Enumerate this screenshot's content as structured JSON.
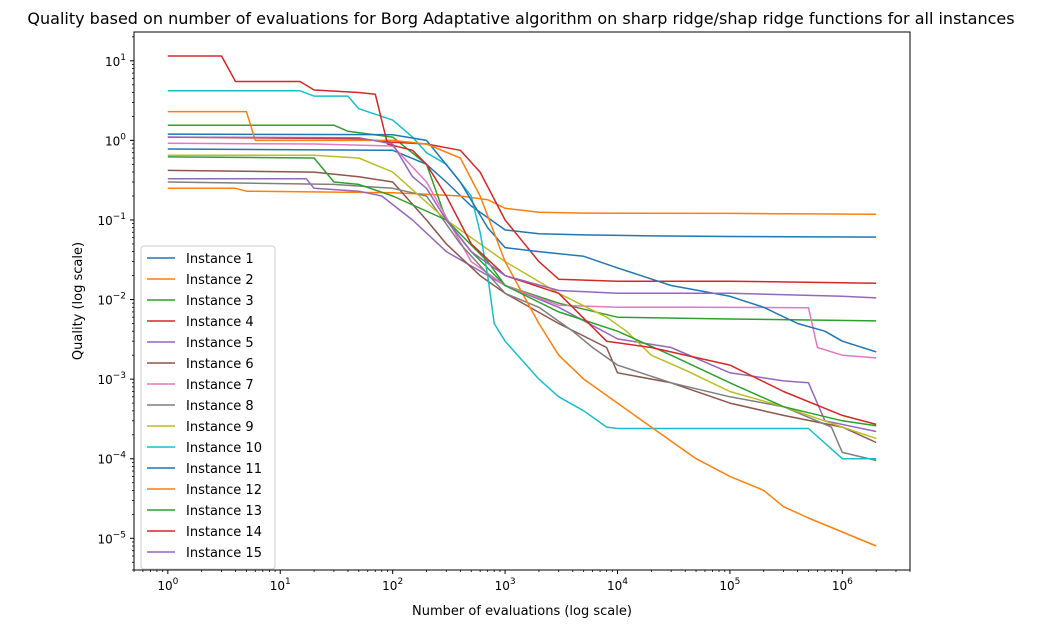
{
  "chart_data": {
    "type": "line",
    "title": "Quality based on number of evaluations for Borg Adaptative algorithm on sharp ridge/shap ridge functions for all instances",
    "xlabel": "Number of evaluations (log scale)",
    "ylabel": "Quality (log scale)",
    "x_scale": "log",
    "y_scale": "log",
    "xlim": [
      0.5,
      4000000
    ],
    "ylim": [
      4e-06,
      23
    ],
    "x_ticks": [
      {
        "value": 1,
        "base": "10",
        "exp": "0"
      },
      {
        "value": 10,
        "base": "10",
        "exp": "1"
      },
      {
        "value": 100,
        "base": "10",
        "exp": "2"
      },
      {
        "value": 1000,
        "base": "10",
        "exp": "3"
      },
      {
        "value": 10000,
        "base": "10",
        "exp": "4"
      },
      {
        "value": 100000,
        "base": "10",
        "exp": "5"
      },
      {
        "value": 1000000,
        "base": "10",
        "exp": "6"
      }
    ],
    "y_ticks": [
      {
        "value": 1e-05,
        "base": "10",
        "exp": "−5"
      },
      {
        "value": 0.0001,
        "base": "10",
        "exp": "−4"
      },
      {
        "value": 0.001,
        "base": "10",
        "exp": "−3"
      },
      {
        "value": 0.01,
        "base": "10",
        "exp": "−2"
      },
      {
        "value": 0.1,
        "base": "10",
        "exp": "−1"
      },
      {
        "value": 1,
        "base": "10",
        "exp": "0"
      },
      {
        "value": 10,
        "base": "10",
        "exp": "1"
      }
    ],
    "grid": false,
    "legend_position": "lower-left",
    "series": [
      {
        "name": "Instance 1",
        "color": "#1f77b4",
        "points": [
          [
            1,
            0.78
          ],
          [
            100,
            0.75
          ],
          [
            200,
            0.5
          ],
          [
            300,
            0.3
          ],
          [
            500,
            0.15
          ],
          [
            1000,
            0.075
          ],
          [
            2000,
            0.067
          ],
          [
            5000,
            0.065
          ],
          [
            20000,
            0.063
          ],
          [
            100000,
            0.062
          ],
          [
            2000000,
            0.061
          ]
        ]
      },
      {
        "name": "Instance 2",
        "color": "#ff7f0e",
        "points": [
          [
            1,
            0.25
          ],
          [
            4,
            0.25
          ],
          [
            5,
            0.23
          ],
          [
            100,
            0.22
          ],
          [
            200,
            0.21
          ],
          [
            400,
            0.2
          ],
          [
            700,
            0.18
          ],
          [
            1000,
            0.14
          ],
          [
            2000,
            0.125
          ],
          [
            5000,
            0.122
          ],
          [
            100000,
            0.121
          ],
          [
            2000000,
            0.118
          ]
        ]
      },
      {
        "name": "Instance 3",
        "color": "#2ca02c",
        "points": [
          [
            1,
            1.55
          ],
          [
            30,
            1.55
          ],
          [
            40,
            1.3
          ],
          [
            100,
            1.1
          ],
          [
            200,
            0.5
          ],
          [
            300,
            0.1
          ],
          [
            500,
            0.04
          ],
          [
            1000,
            0.015
          ],
          [
            3000,
            0.009
          ],
          [
            10000,
            0.006
          ],
          [
            100000,
            0.0057
          ],
          [
            2000000,
            0.0054
          ]
        ]
      },
      {
        "name": "Instance 4",
        "color": "#d62728",
        "points": [
          [
            1,
            1.1
          ],
          [
            50,
            1.05
          ],
          [
            100,
            0.95
          ],
          [
            200,
            0.9
          ],
          [
            400,
            0.75
          ],
          [
            600,
            0.4
          ],
          [
            1000,
            0.1
          ],
          [
            2000,
            0.03
          ],
          [
            3000,
            0.018
          ],
          [
            10000,
            0.017
          ],
          [
            100000,
            0.017
          ],
          [
            2000000,
            0.016
          ]
        ]
      },
      {
        "name": "Instance 5",
        "color": "#9467bd",
        "points": [
          [
            1,
            0.33
          ],
          [
            17,
            0.33
          ],
          [
            20,
            0.25
          ],
          [
            50,
            0.23
          ],
          [
            80,
            0.2
          ],
          [
            150,
            0.1
          ],
          [
            300,
            0.04
          ],
          [
            1000,
            0.015
          ],
          [
            3000,
            0.008
          ],
          [
            10000,
            0.0032
          ],
          [
            30000,
            0.0025
          ],
          [
            100000,
            0.0012
          ],
          [
            300000,
            0.00095
          ],
          [
            500000,
            0.0009
          ],
          [
            700000,
            0.0003
          ],
          [
            2000000,
            0.00022
          ]
        ]
      },
      {
        "name": "Instance 6",
        "color": "#8c564b",
        "points": [
          [
            1,
            0.42
          ],
          [
            20,
            0.4
          ],
          [
            50,
            0.35
          ],
          [
            100,
            0.3
          ],
          [
            200,
            0.1
          ],
          [
            300,
            0.05
          ],
          [
            600,
            0.02
          ],
          [
            1000,
            0.012
          ],
          [
            3000,
            0.005
          ],
          [
            8000,
            0.0025
          ],
          [
            10000,
            0.0012
          ],
          [
            30000,
            0.0009
          ],
          [
            100000,
            0.0005
          ],
          [
            300000,
            0.00035
          ],
          [
            1000000,
            0.00025
          ],
          [
            2000000,
            0.00016
          ]
        ]
      },
      {
        "name": "Instance 7",
        "color": "#e377c2",
        "points": [
          [
            1,
            0.92
          ],
          [
            20,
            0.9
          ],
          [
            100,
            0.85
          ],
          [
            200,
            0.3
          ],
          [
            500,
            0.03
          ],
          [
            1000,
            0.015
          ],
          [
            3000,
            0.0085
          ],
          [
            10000,
            0.008
          ],
          [
            50000,
            0.008
          ],
          [
            500000,
            0.0079
          ],
          [
            600000,
            0.0025
          ],
          [
            1000000,
            0.002
          ],
          [
            2000000,
            0.00185
          ]
        ]
      },
      {
        "name": "Instance 8",
        "color": "#7f7f7f",
        "points": [
          [
            1,
            0.3
          ],
          [
            30,
            0.28
          ],
          [
            100,
            0.25
          ],
          [
            200,
            0.2
          ],
          [
            400,
            0.05
          ],
          [
            1000,
            0.012
          ],
          [
            2000,
            0.008
          ],
          [
            4000,
            0.004
          ],
          [
            6000,
            0.0025
          ],
          [
            10000,
            0.0015
          ],
          [
            30000,
            0.0009
          ],
          [
            100000,
            0.0006
          ],
          [
            300000,
            0.00045
          ],
          [
            800000,
            0.00025
          ],
          [
            1000000,
            0.00012
          ],
          [
            2000000,
            9.5e-05
          ]
        ]
      },
      {
        "name": "Instance 9",
        "color": "#bcbd22",
        "points": [
          [
            1,
            0.65
          ],
          [
            20,
            0.65
          ],
          [
            50,
            0.6
          ],
          [
            100,
            0.4
          ],
          [
            300,
            0.1
          ],
          [
            600,
            0.05
          ],
          [
            1000,
            0.03
          ],
          [
            3000,
            0.012
          ],
          [
            8000,
            0.006
          ],
          [
            12000,
            0.004
          ],
          [
            20000,
            0.002
          ],
          [
            40000,
            0.0013
          ],
          [
            100000,
            0.0007
          ],
          [
            300000,
            0.00045
          ],
          [
            1000000,
            0.00025
          ],
          [
            2000000,
            0.00018
          ]
        ]
      },
      {
        "name": "Instance 10",
        "color": "#17becf",
        "points": [
          [
            1,
            4.2
          ],
          [
            15,
            4.2
          ],
          [
            20,
            3.6
          ],
          [
            40,
            3.6
          ],
          [
            50,
            2.5
          ],
          [
            100,
            1.8
          ],
          [
            150,
            1.1
          ],
          [
            200,
            0.7
          ],
          [
            300,
            0.5
          ],
          [
            500,
            0.2
          ],
          [
            600,
            0.07
          ],
          [
            700,
            0.02
          ],
          [
            800,
            0.005
          ],
          [
            1000,
            0.003
          ],
          [
            2000,
            0.001
          ],
          [
            3000,
            0.0006
          ],
          [
            5000,
            0.0004
          ],
          [
            8000,
            0.00025
          ],
          [
            10000,
            0.00024
          ],
          [
            100000,
            0.00024
          ],
          [
            500000,
            0.00024
          ],
          [
            1000000,
            0.0001
          ],
          [
            2000000,
            0.0001
          ]
        ]
      },
      {
        "name": "Instance 11",
        "color": "#1f77b4",
        "points": [
          [
            1,
            1.2
          ],
          [
            100,
            1.18
          ],
          [
            200,
            1.0
          ],
          [
            400,
            0.3
          ],
          [
            700,
            0.08
          ],
          [
            1000,
            0.045
          ],
          [
            2000,
            0.04
          ],
          [
            5000,
            0.035
          ],
          [
            10000,
            0.025
          ],
          [
            30000,
            0.015
          ],
          [
            100000,
            0.011
          ],
          [
            200000,
            0.008
          ],
          [
            400000,
            0.005
          ],
          [
            700000,
            0.004
          ],
          [
            1000000,
            0.003
          ],
          [
            2000000,
            0.0022
          ]
        ]
      },
      {
        "name": "Instance 12",
        "color": "#ff7f0e",
        "points": [
          [
            1,
            2.3
          ],
          [
            5,
            2.3
          ],
          [
            6,
            1.0
          ],
          [
            100,
            1.0
          ],
          [
            200,
            0.9
          ],
          [
            400,
            0.6
          ],
          [
            600,
            0.2
          ],
          [
            1000,
            0.03
          ],
          [
            2000,
            0.005
          ],
          [
            3000,
            0.002
          ],
          [
            5000,
            0.001
          ],
          [
            10000,
            0.0005
          ],
          [
            20000,
            0.00025
          ],
          [
            50000,
            0.0001
          ],
          [
            100000,
            6e-05
          ],
          [
            200000,
            4e-05
          ],
          [
            300000,
            2.5e-05
          ],
          [
            500000,
            1.8e-05
          ],
          [
            1000000,
            1.2e-05
          ],
          [
            2000000,
            8e-06
          ]
        ]
      },
      {
        "name": "Instance 13",
        "color": "#2ca02c",
        "points": [
          [
            1,
            0.62
          ],
          [
            20,
            0.6
          ],
          [
            30,
            0.3
          ],
          [
            50,
            0.28
          ],
          [
            100,
            0.2
          ],
          [
            300,
            0.1
          ],
          [
            700,
            0.03
          ],
          [
            1000,
            0.015
          ],
          [
            3000,
            0.007
          ],
          [
            10000,
            0.004
          ],
          [
            30000,
            0.002
          ],
          [
            100000,
            0.0009
          ],
          [
            300000,
            0.00045
          ],
          [
            1000000,
            0.0003
          ],
          [
            2000000,
            0.00026
          ]
        ]
      },
      {
        "name": "Instance 14",
        "color": "#d62728",
        "points": [
          [
            1,
            11.5
          ],
          [
            3,
            11.5
          ],
          [
            4,
            5.5
          ],
          [
            15,
            5.5
          ],
          [
            20,
            4.3
          ],
          [
            50,
            4.0
          ],
          [
            70,
            3.8
          ],
          [
            90,
            0.9
          ],
          [
            150,
            0.75
          ],
          [
            200,
            0.5
          ],
          [
            300,
            0.2
          ],
          [
            500,
            0.05
          ],
          [
            1000,
            0.02
          ],
          [
            3000,
            0.012
          ],
          [
            8000,
            0.003
          ],
          [
            20000,
            0.0025
          ],
          [
            100000,
            0.0015
          ],
          [
            300000,
            0.0007
          ],
          [
            1000000,
            0.00035
          ],
          [
            2000000,
            0.00027
          ]
        ]
      },
      {
        "name": "Instance 15",
        "color": "#9467bd",
        "points": [
          [
            1,
            1.1
          ],
          [
            50,
            1.08
          ],
          [
            100,
            0.9
          ],
          [
            150,
            0.35
          ],
          [
            200,
            0.25
          ],
          [
            300,
            0.1
          ],
          [
            500,
            0.04
          ],
          [
            1000,
            0.02
          ],
          [
            3000,
            0.013
          ],
          [
            10000,
            0.012
          ],
          [
            100000,
            0.012
          ],
          [
            1000000,
            0.011
          ],
          [
            2000000,
            0.0105
          ]
        ]
      }
    ]
  }
}
